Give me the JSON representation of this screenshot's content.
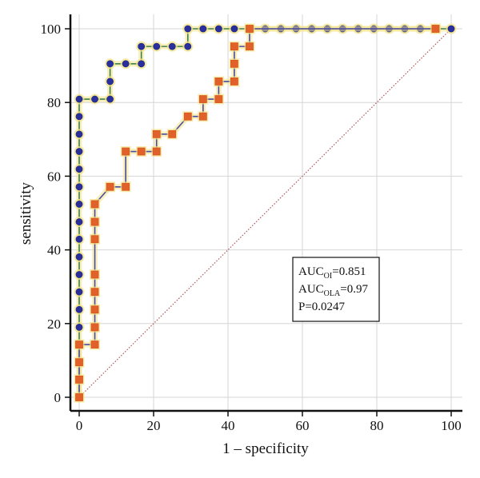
{
  "chart_data": {
    "type": "line",
    "xlabel": "1 – specificity",
    "ylabel": "sensitivity",
    "xlim": [
      0,
      100
    ],
    "ylim": [
      0,
      100
    ],
    "x_ticks": [
      "0",
      "20",
      "40",
      "60",
      "80",
      "100"
    ],
    "y_ticks": [
      "0",
      "20",
      "40",
      "60",
      "80",
      "100"
    ],
    "grid": true,
    "diagonal_reference": true,
    "annotation": {
      "position": "right-middle",
      "lines": [
        {
          "main": "AUC",
          "sub": "OI",
          "rest": "=0.851"
        },
        {
          "main": "AUC",
          "sub": "OLA",
          "rest": "=0.97"
        },
        {
          "main": "P=0.0247",
          "sub": "",
          "rest": ""
        }
      ]
    },
    "series": [
      {
        "marker": "circle",
        "color": "#1e2a8c",
        "fill": "#2b2f9e",
        "line_color": "#3f7f4a",
        "halo_color": "#f3e38a",
        "points": [
          [
            0,
            0
          ],
          [
            0,
            14.3
          ],
          [
            0,
            19.0
          ],
          [
            0,
            23.8
          ],
          [
            0,
            28.6
          ],
          [
            0,
            33.3
          ],
          [
            0,
            38.1
          ],
          [
            0,
            42.9
          ],
          [
            0,
            47.6
          ],
          [
            0,
            52.4
          ],
          [
            0,
            57.1
          ],
          [
            0,
            61.9
          ],
          [
            0,
            66.7
          ],
          [
            0,
            71.4
          ],
          [
            0,
            76.2
          ],
          [
            0,
            80.9
          ],
          [
            4.2,
            80.9
          ],
          [
            8.3,
            80.9
          ],
          [
            8.3,
            85.7
          ],
          [
            8.3,
            90.5
          ],
          [
            12.5,
            90.5
          ],
          [
            16.7,
            90.5
          ],
          [
            16.7,
            95.2
          ],
          [
            20.8,
            95.2
          ],
          [
            25.0,
            95.2
          ],
          [
            29.2,
            95.2
          ],
          [
            29.2,
            100
          ],
          [
            33.3,
            100
          ],
          [
            37.5,
            100
          ],
          [
            41.7,
            100
          ],
          [
            45.8,
            100
          ],
          [
            50.0,
            100
          ],
          [
            54.2,
            100
          ],
          [
            58.3,
            100
          ],
          [
            62.5,
            100
          ],
          [
            66.7,
            100
          ],
          [
            70.8,
            100
          ],
          [
            75.0,
            100
          ],
          [
            79.2,
            100
          ],
          [
            83.3,
            100
          ],
          [
            87.5,
            100
          ],
          [
            91.7,
            100
          ],
          [
            95.8,
            100
          ],
          [
            100,
            100
          ]
        ]
      },
      {
        "marker": "square",
        "color": "#d8571f",
        "fill": "#e0622a",
        "line_color": "#4a4aa0",
        "halo_color": "#f3e38a",
        "points": [
          [
            0,
            0
          ],
          [
            0,
            4.8
          ],
          [
            0,
            9.5
          ],
          [
            0,
            14.3
          ],
          [
            4.2,
            14.3
          ],
          [
            4.2,
            19.0
          ],
          [
            4.2,
            23.8
          ],
          [
            4.2,
            28.6
          ],
          [
            4.2,
            33.3
          ],
          [
            4.2,
            42.9
          ],
          [
            4.2,
            47.6
          ],
          [
            4.2,
            52.4
          ],
          [
            8.3,
            57.1
          ],
          [
            12.5,
            57.1
          ],
          [
            12.5,
            66.7
          ],
          [
            16.7,
            66.7
          ],
          [
            20.8,
            66.7
          ],
          [
            20.8,
            71.4
          ],
          [
            25.0,
            71.4
          ],
          [
            29.2,
            76.2
          ],
          [
            33.3,
            76.2
          ],
          [
            33.3,
            80.9
          ],
          [
            37.5,
            80.9
          ],
          [
            37.5,
            85.7
          ],
          [
            41.7,
            85.7
          ],
          [
            41.7,
            90.5
          ],
          [
            41.7,
            95.2
          ],
          [
            45.8,
            95.2
          ],
          [
            45.8,
            100
          ],
          [
            95.8,
            100
          ]
        ]
      }
    ]
  }
}
